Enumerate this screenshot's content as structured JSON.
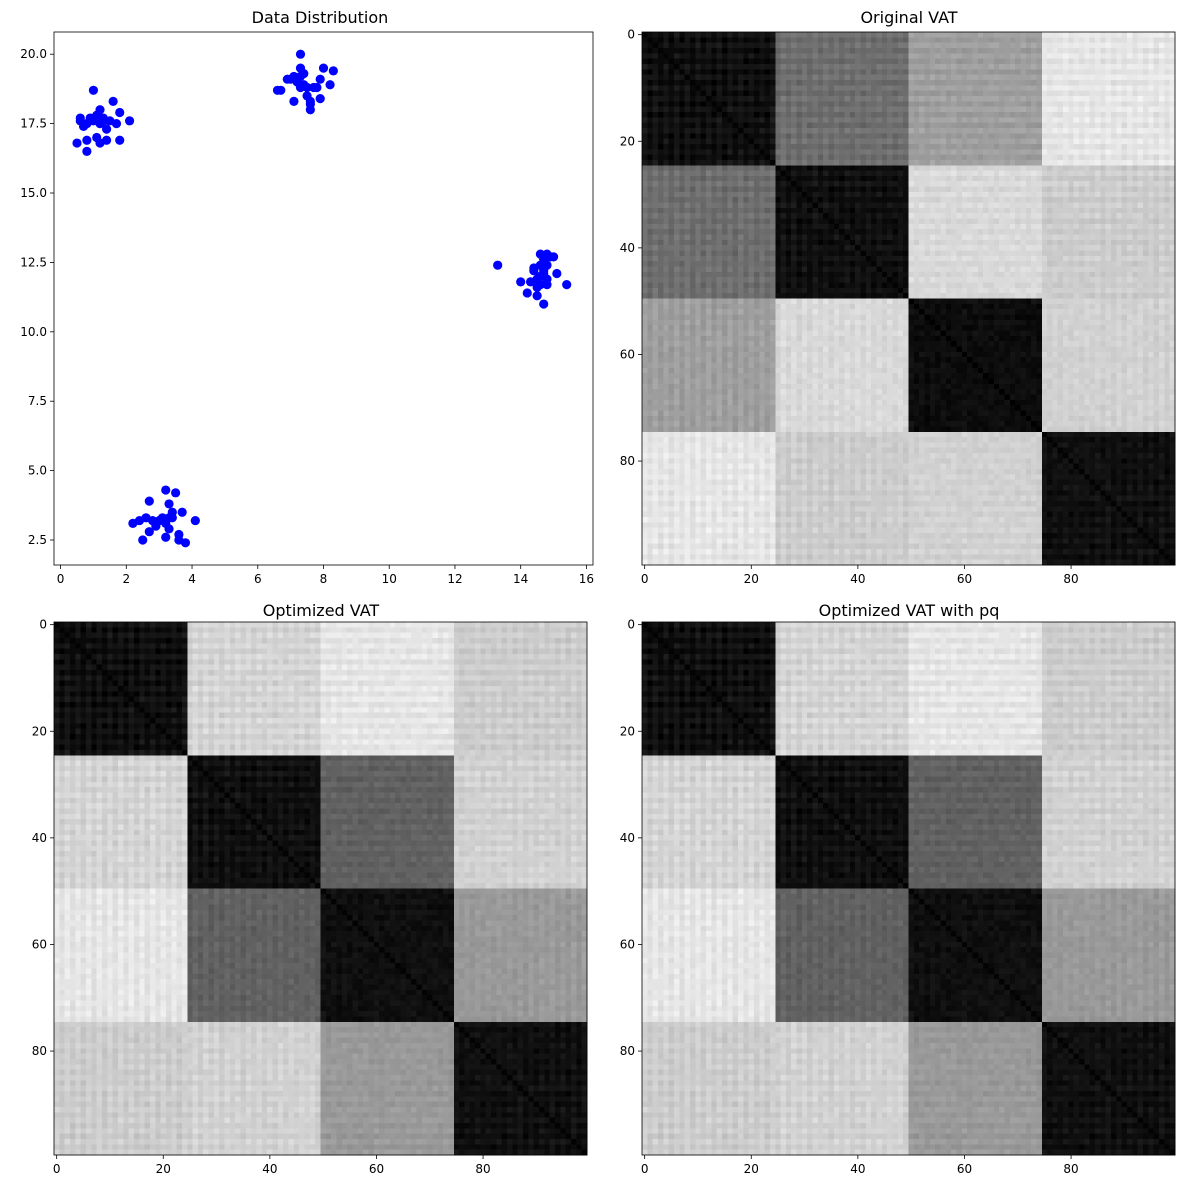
{
  "chart_data": [
    {
      "type": "scatter",
      "title": "Data Distribution",
      "xlabel": "",
      "ylabel": "",
      "xlim": [
        -0.2,
        16.2
      ],
      "ylim": [
        1.6,
        20.8
      ],
      "xticks": [
        0,
        2,
        4,
        6,
        8,
        10,
        12,
        14,
        16
      ],
      "yticks": [
        2.5,
        5.0,
        7.5,
        10.0,
        12.5,
        15.0,
        17.5,
        20.0
      ],
      "color": "#0000ff",
      "points": [
        [
          0.5,
          16.8
        ],
        [
          0.6,
          17.6
        ],
        [
          0.6,
          17.7
        ],
        [
          0.7,
          17.4
        ],
        [
          0.8,
          16.9
        ],
        [
          0.8,
          17.5
        ],
        [
          0.8,
          16.5
        ],
        [
          0.9,
          17.7
        ],
        [
          1.0,
          18.7
        ],
        [
          1.0,
          17.6
        ],
        [
          1.1,
          17.0
        ],
        [
          1.1,
          17.8
        ],
        [
          1.2,
          18.0
        ],
        [
          1.2,
          17.5
        ],
        [
          1.2,
          16.8
        ],
        [
          1.3,
          17.6
        ],
        [
          1.3,
          17.7
        ],
        [
          1.4,
          16.9
        ],
        [
          1.4,
          17.3
        ],
        [
          1.5,
          17.6
        ],
        [
          1.6,
          18.3
        ],
        [
          1.7,
          17.5
        ],
        [
          1.8,
          17.9
        ],
        [
          1.8,
          16.9
        ],
        [
          2.1,
          17.6
        ],
        [
          6.6,
          18.7
        ],
        [
          6.7,
          18.7
        ],
        [
          6.9,
          19.1
        ],
        [
          7.0,
          19.1
        ],
        [
          7.1,
          19.2
        ],
        [
          7.1,
          18.3
        ],
        [
          7.2,
          19.0
        ],
        [
          7.3,
          20.0
        ],
        [
          7.3,
          19.5
        ],
        [
          7.3,
          19.2
        ],
        [
          7.3,
          18.8
        ],
        [
          7.4,
          18.9
        ],
        [
          7.4,
          19.3
        ],
        [
          7.5,
          18.8
        ],
        [
          7.5,
          18.5
        ],
        [
          7.6,
          18.3
        ],
        [
          7.6,
          18.2
        ],
        [
          7.6,
          18.0
        ],
        [
          7.7,
          18.8
        ],
        [
          7.9,
          19.1
        ],
        [
          7.9,
          18.4
        ],
        [
          8.0,
          19.5
        ],
        [
          8.2,
          18.9
        ],
        [
          8.3,
          19.4
        ],
        [
          7.8,
          18.8
        ],
        [
          13.3,
          12.4
        ],
        [
          14.0,
          11.8
        ],
        [
          14.2,
          11.4
        ],
        [
          14.3,
          11.8
        ],
        [
          14.4,
          12.2
        ],
        [
          14.5,
          11.3
        ],
        [
          14.5,
          11.6
        ],
        [
          14.5,
          11.9
        ],
        [
          14.6,
          12.4
        ],
        [
          14.6,
          12.8
        ],
        [
          14.6,
          12.0
        ],
        [
          14.7,
          12.6
        ],
        [
          14.7,
          11.0
        ],
        [
          14.7,
          12.2
        ],
        [
          14.8,
          11.9
        ],
        [
          14.8,
          12.8
        ],
        [
          14.8,
          12.4
        ],
        [
          14.8,
          11.7
        ],
        [
          14.9,
          12.7
        ],
        [
          15.0,
          12.7
        ],
        [
          15.1,
          12.1
        ],
        [
          15.4,
          11.7
        ],
        [
          14.7,
          12.1
        ],
        [
          14.6,
          11.7
        ],
        [
          14.4,
          12.3
        ],
        [
          2.2,
          3.1
        ],
        [
          2.4,
          3.2
        ],
        [
          2.5,
          2.5
        ],
        [
          2.6,
          3.3
        ],
        [
          2.7,
          3.9
        ],
        [
          2.7,
          2.8
        ],
        [
          2.8,
          3.2
        ],
        [
          2.9,
          3.0
        ],
        [
          3.0,
          3.2
        ],
        [
          3.1,
          3.3
        ],
        [
          3.2,
          4.3
        ],
        [
          3.2,
          3.1
        ],
        [
          3.2,
          2.6
        ],
        [
          3.3,
          2.9
        ],
        [
          3.3,
          3.8
        ],
        [
          3.4,
          3.5
        ],
        [
          3.4,
          3.3
        ],
        [
          3.5,
          4.2
        ],
        [
          3.6,
          2.5
        ],
        [
          3.7,
          3.5
        ],
        [
          3.8,
          2.4
        ],
        [
          4.1,
          3.2
        ],
        [
          3.3,
          3.3
        ],
        [
          3.6,
          2.7
        ],
        [
          2.9,
          3.1
        ]
      ]
    },
    {
      "type": "heatmap",
      "title": "Original VAT",
      "xlim": [
        -0.5,
        99.5
      ],
      "ylim": [
        -0.5,
        99.5
      ],
      "xticks": [
        0,
        20,
        40,
        60,
        80
      ],
      "yticks": [
        0,
        20,
        40,
        60,
        80
      ],
      "colormap": "gray",
      "block_size": 25,
      "block_levels": [
        [
          0.06,
          0.43,
          0.62,
          0.9
        ],
        [
          0.43,
          0.06,
          0.85,
          0.8
        ],
        [
          0.62,
          0.85,
          0.05,
          0.82
        ],
        [
          0.9,
          0.8,
          0.82,
          0.06
        ]
      ]
    },
    {
      "type": "heatmap",
      "title": "Optimized VAT",
      "xlim": [
        -0.5,
        99.5
      ],
      "ylim": [
        -0.5,
        99.5
      ],
      "xticks": [
        0,
        20,
        40,
        60,
        80
      ],
      "yticks": [
        0,
        20,
        40,
        60,
        80
      ],
      "colormap": "gray",
      "block_size": 25,
      "block_levels": [
        [
          0.06,
          0.83,
          0.9,
          0.8
        ],
        [
          0.83,
          0.06,
          0.38,
          0.82
        ],
        [
          0.9,
          0.38,
          0.06,
          0.6
        ],
        [
          0.8,
          0.82,
          0.6,
          0.06
        ]
      ]
    },
    {
      "type": "heatmap",
      "title": "Optimized VAT with pq",
      "xlim": [
        -0.5,
        99.5
      ],
      "ylim": [
        -0.5,
        99.5
      ],
      "xticks": [
        0,
        20,
        40,
        60,
        80
      ],
      "yticks": [
        0,
        20,
        40,
        60,
        80
      ],
      "colormap": "gray",
      "block_size": 25,
      "block_levels": [
        [
          0.06,
          0.83,
          0.9,
          0.8
        ],
        [
          0.83,
          0.06,
          0.38,
          0.82
        ],
        [
          0.9,
          0.38,
          0.06,
          0.6
        ],
        [
          0.8,
          0.82,
          0.6,
          0.06
        ]
      ]
    }
  ]
}
